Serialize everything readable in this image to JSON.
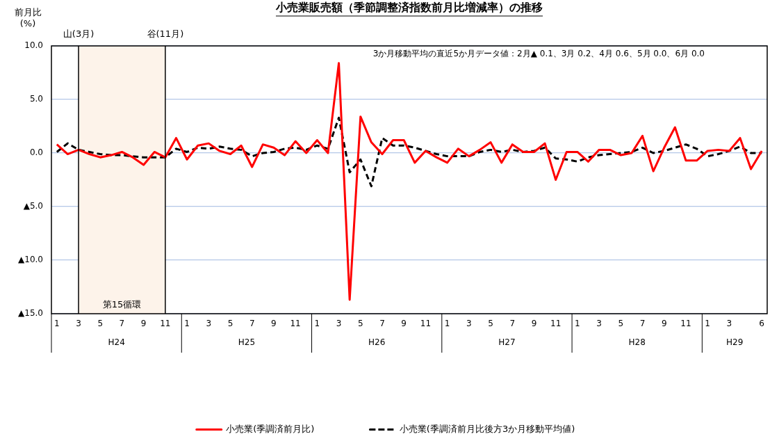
{
  "chart_data": {
    "type": "line",
    "title": "小売業販売額（季節調整済指数前月比増減率）の推移",
    "ylabel": "前月比\n(%)",
    "categories": [
      "1",
      null,
      "3",
      null,
      "5",
      null,
      "7",
      null,
      "9",
      null,
      "11",
      null,
      "1",
      null,
      "3",
      null,
      "5",
      null,
      "7",
      null,
      "9",
      null,
      "11",
      null,
      "1",
      null,
      "3",
      null,
      "5",
      null,
      "7",
      null,
      "9",
      null,
      "11",
      null,
      "1",
      null,
      "3",
      null,
      "5",
      null,
      "7",
      null,
      "9",
      null,
      "11",
      null,
      "1",
      null,
      "3",
      null,
      "5",
      null,
      "7",
      null,
      "9",
      null,
      "11",
      null,
      "1",
      null,
      "3",
      null,
      null,
      "6"
    ],
    "series": [
      {
        "name": "小売業(季調済前月比)",
        "color": "#ff0000",
        "line_style": "solid",
        "values": [
          0.8,
          -0.1,
          0.3,
          -0.1,
          -0.4,
          -0.2,
          0.1,
          -0.4,
          -1.1,
          0.1,
          -0.4,
          1.4,
          -0.6,
          0.7,
          0.9,
          0.2,
          -0.1,
          0.7,
          -1.3,
          0.8,
          0.5,
          -0.2,
          1.1,
          0.0,
          1.2,
          0.0,
          8.4,
          -13.7,
          3.4,
          1.0,
          -0.1,
          1.2,
          1.2,
          -0.9,
          0.2,
          -0.4,
          -0.9,
          0.4,
          -0.3,
          0.3,
          1.0,
          -0.9,
          0.8,
          0.1,
          0.1,
          0.9,
          -2.5,
          0.1,
          0.1,
          -0.8,
          0.3,
          0.3,
          -0.2,
          0.0,
          1.6,
          -1.7,
          0.5,
          2.4,
          -0.7,
          -0.7,
          0.2,
          0.3,
          0.2,
          1.4,
          -1.5,
          0.2
        ]
      },
      {
        "name": "小売業(季調済前月比後方3か月移動平均値)",
        "color": "#000000",
        "line_style": "dashed",
        "values": [
          0.1,
          0.9,
          0.3,
          0.1,
          -0.1,
          -0.2,
          -0.2,
          -0.3,
          -0.4,
          -0.4,
          -0.4,
          0.4,
          0.1,
          0.5,
          0.4,
          0.6,
          0.4,
          0.3,
          -0.3,
          0.0,
          0.1,
          0.4,
          0.5,
          0.3,
          0.7,
          0.4,
          3.3,
          -1.8,
          -0.6,
          -3.1,
          1.4,
          0.7,
          0.7,
          0.5,
          0.2,
          -0.1,
          -0.3,
          -0.3,
          -0.3,
          0.1,
          0.3,
          0.1,
          0.3,
          0.1,
          0.2,
          0.5,
          -0.5,
          -0.6,
          -0.8,
          -0.4,
          -0.2,
          -0.1,
          0.0,
          0.1,
          0.5,
          0.0,
          0.2,
          0.5,
          0.8,
          0.4,
          -0.3,
          -0.1,
          0.2,
          0.6,
          0.0,
          0.0
        ]
      }
    ],
    "ylim": [
      -15,
      10
    ],
    "yticks": [
      {
        "value": 10,
        "label": "10.0"
      },
      {
        "value": 5,
        "label": "5.0"
      },
      {
        "value": 0,
        "label": "0.0"
      },
      {
        "value": -5,
        "label": "▲5.0"
      },
      {
        "value": -10,
        "label": "▲10.0"
      },
      {
        "value": -15,
        "label": "▲15.0"
      }
    ],
    "grid": "y",
    "legend": "bottom",
    "marker": "none",
    "ref_lines": [
      {
        "axis": "x",
        "value": "3",
        "label": "山(3月)",
        "color": "#000000"
      },
      {
        "axis": "x",
        "value": "11",
        "label": "谷(11月)",
        "color": "#000000"
      }
    ],
    "bands": [
      {
        "axis": "x",
        "from": "3",
        "to": "11",
        "label": "第15循環",
        "color": "#fdf3ea"
      }
    ],
    "annotations": [
      "3か月移動平均の直近5か月データ値：2月▲ 0.1、3月 0.2、4月 0.6、5月 0.0、6月 0.0",
      "H24",
      "H25",
      "H26",
      "H27",
      "H28",
      "H29"
    ]
  }
}
